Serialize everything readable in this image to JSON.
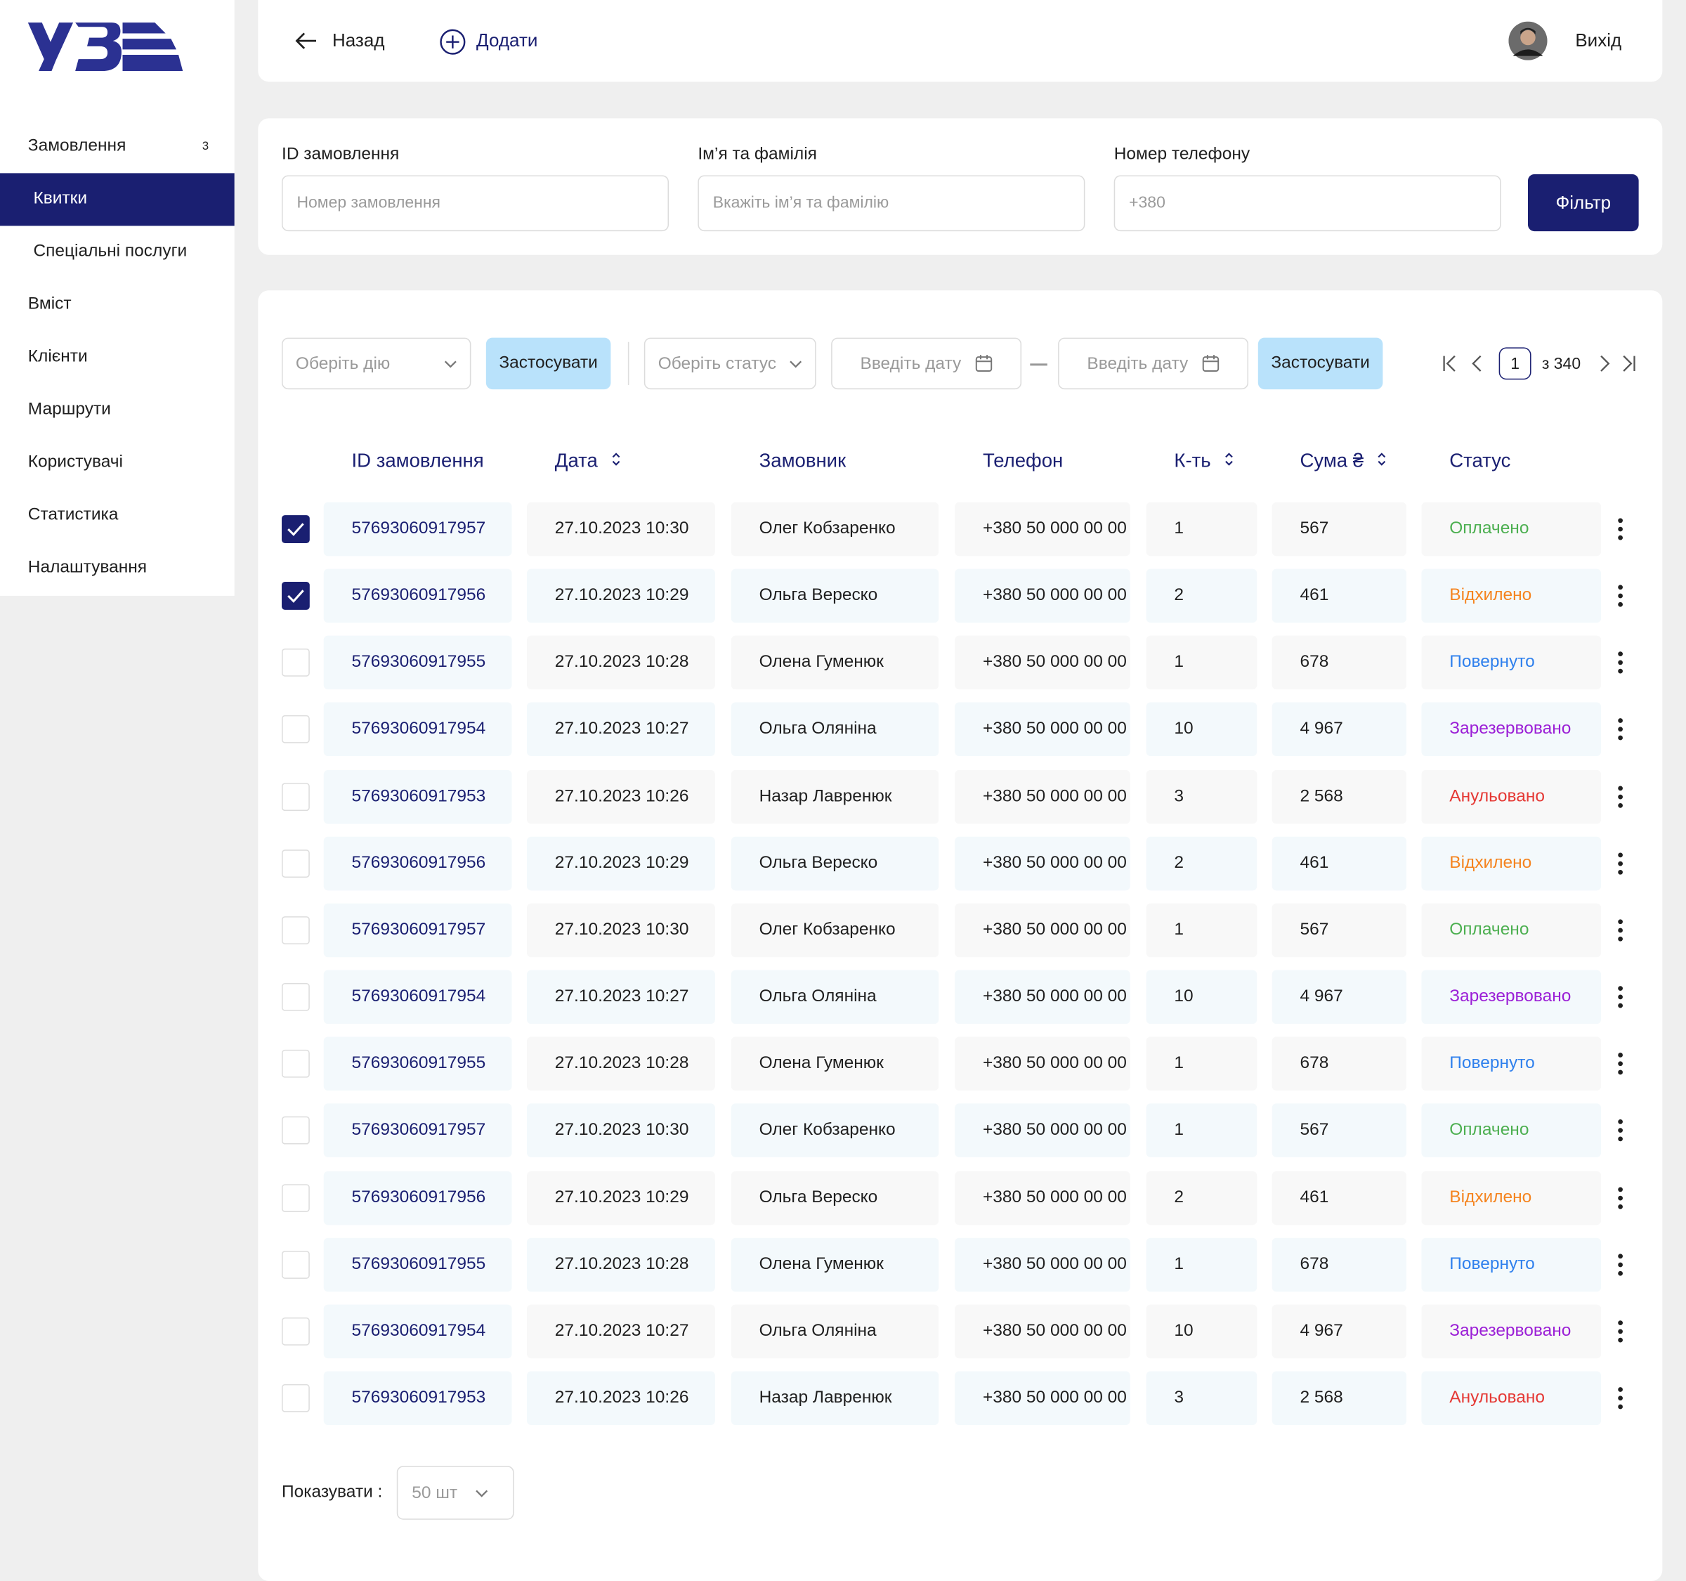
{
  "sidebar": {
    "menu": [
      {
        "label": "Замовлення",
        "badge": "3",
        "sub": false,
        "active": false
      },
      {
        "label": "Квитки",
        "sub": true,
        "active": true
      },
      {
        "label": "Спеціальні послуги",
        "sub": true,
        "active": false
      },
      {
        "label": "Вміст",
        "sub": false,
        "active": false
      },
      {
        "label": "Клієнти",
        "sub": false,
        "active": false
      },
      {
        "label": "Маршрути",
        "sub": false,
        "active": false
      },
      {
        "label": "Користувачі",
        "sub": false,
        "active": false
      },
      {
        "label": "Статистика",
        "sub": false,
        "active": false
      },
      {
        "label": "Налаштування",
        "sub": false,
        "active": false
      }
    ]
  },
  "header": {
    "back": "Назад",
    "add": "Додати",
    "logout": "Вихід"
  },
  "filters": {
    "fields": [
      {
        "label": "ID замовлення",
        "placeholder": "Номер замовлення"
      },
      {
        "label": "Ім’я та фамілія",
        "placeholder": "Вкажіть ім’я та фамілію"
      },
      {
        "label": "Номер телефону",
        "placeholder": "+380"
      }
    ],
    "button": "Фільтр"
  },
  "toolbar": {
    "action_placeholder": "Оберіть дію",
    "apply_action": "Застосувати",
    "status_placeholder": "Оберіть статус",
    "date_from": "Введіть дату",
    "date_to": "Введіть дату",
    "apply_filter": "Застосувати",
    "page": "1",
    "total": "з 340"
  },
  "table": {
    "columns": [
      {
        "label": "ID замовлення",
        "sortable": false
      },
      {
        "label": "Дата",
        "sortable": true
      },
      {
        "label": "Замовник",
        "sortable": false
      },
      {
        "label": "Телефон",
        "sortable": false
      },
      {
        "label": "К-ть",
        "sortable": true
      },
      {
        "label": "Сума ₴",
        "sortable": true
      },
      {
        "label": "Статус",
        "sortable": false
      }
    ],
    "status_colors": {
      "Оплачено": "#4caf50",
      "Відхилено": "#f5841f",
      "Повернуто": "#2f80ed",
      "Зарезервовано": "#9b1fd6",
      "Анульовано": "#e53935"
    },
    "rows": [
      {
        "checked": true,
        "id": "57693060917957",
        "date": "27.10.2023  10:30",
        "customer": "Олег Кобзаренко",
        "phone": "+380 50 000 00 00",
        "qty": "1",
        "sum": "567",
        "status": "Оплачено"
      },
      {
        "checked": true,
        "id": "57693060917956",
        "date": "27.10.2023  10:29",
        "customer": "Ольга Вереско",
        "phone": "+380 50 000 00 00",
        "qty": "2",
        "sum": "461",
        "status": "Відхилено"
      },
      {
        "checked": false,
        "id": "57693060917955",
        "date": "27.10.2023  10:28",
        "customer": "Олена Гуменюк",
        "phone": "+380 50 000 00 00",
        "qty": "1",
        "sum": "678",
        "status": "Повернуто"
      },
      {
        "checked": false,
        "id": "57693060917954",
        "date": "27.10.2023  10:27",
        "customer": "Ольга Оляніна",
        "phone": "+380 50 000 00 00",
        "qty": "10",
        "sum": "4 967",
        "status": "Зарезервовано"
      },
      {
        "checked": false,
        "id": "57693060917953",
        "date": "27.10.2023  10:26",
        "customer": "Назар Лавренюк",
        "phone": "+380 50 000 00 00",
        "qty": "3",
        "sum": "2 568",
        "status": "Анульовано"
      },
      {
        "checked": false,
        "id": "57693060917956",
        "date": "27.10.2023  10:29",
        "customer": "Ольга Вереско",
        "phone": "+380 50 000 00 00",
        "qty": "2",
        "sum": "461",
        "status": "Відхилено"
      },
      {
        "checked": false,
        "id": "57693060917957",
        "date": "27.10.2023  10:30",
        "customer": "Олег Кобзаренко",
        "phone": "+380 50 000 00 00",
        "qty": "1",
        "sum": "567",
        "status": "Оплачено"
      },
      {
        "checked": false,
        "id": "57693060917954",
        "date": "27.10.2023  10:27",
        "customer": "Ольга Оляніна",
        "phone": "+380 50 000 00 00",
        "qty": "10",
        "sum": "4 967",
        "status": "Зарезервовано"
      },
      {
        "checked": false,
        "id": "57693060917955",
        "date": "27.10.2023  10:28",
        "customer": "Олена Гуменюк",
        "phone": "+380 50 000 00 00",
        "qty": "1",
        "sum": "678",
        "status": "Повернуто"
      },
      {
        "checked": false,
        "id": "57693060917957",
        "date": "27.10.2023  10:30",
        "customer": "Олег Кобзаренко",
        "phone": "+380 50 000 00 00",
        "qty": "1",
        "sum": "567",
        "status": "Оплачено"
      },
      {
        "checked": false,
        "id": "57693060917956",
        "date": "27.10.2023  10:29",
        "customer": "Ольга Вереско",
        "phone": "+380 50 000 00 00",
        "qty": "2",
        "sum": "461",
        "status": "Відхилено"
      },
      {
        "checked": false,
        "id": "57693060917955",
        "date": "27.10.2023  10:28",
        "customer": "Олена Гуменюк",
        "phone": "+380 50 000 00 00",
        "qty": "1",
        "sum": "678",
        "status": "Повернуто"
      },
      {
        "checked": false,
        "id": "57693060917954",
        "date": "27.10.2023  10:27",
        "customer": "Ольга Оляніна",
        "phone": "+380 50 000 00 00",
        "qty": "10",
        "sum": "4 967",
        "status": "Зарезервовано"
      },
      {
        "checked": false,
        "id": "57693060917953",
        "date": "27.10.2023  10:26",
        "customer": "Назар Лавренюк",
        "phone": "+380 50 000 00 00",
        "qty": "3",
        "sum": "2 568",
        "status": "Анульовано"
      }
    ]
  },
  "footer": {
    "label": "Показувати :",
    "per_page": "50 шт"
  }
}
